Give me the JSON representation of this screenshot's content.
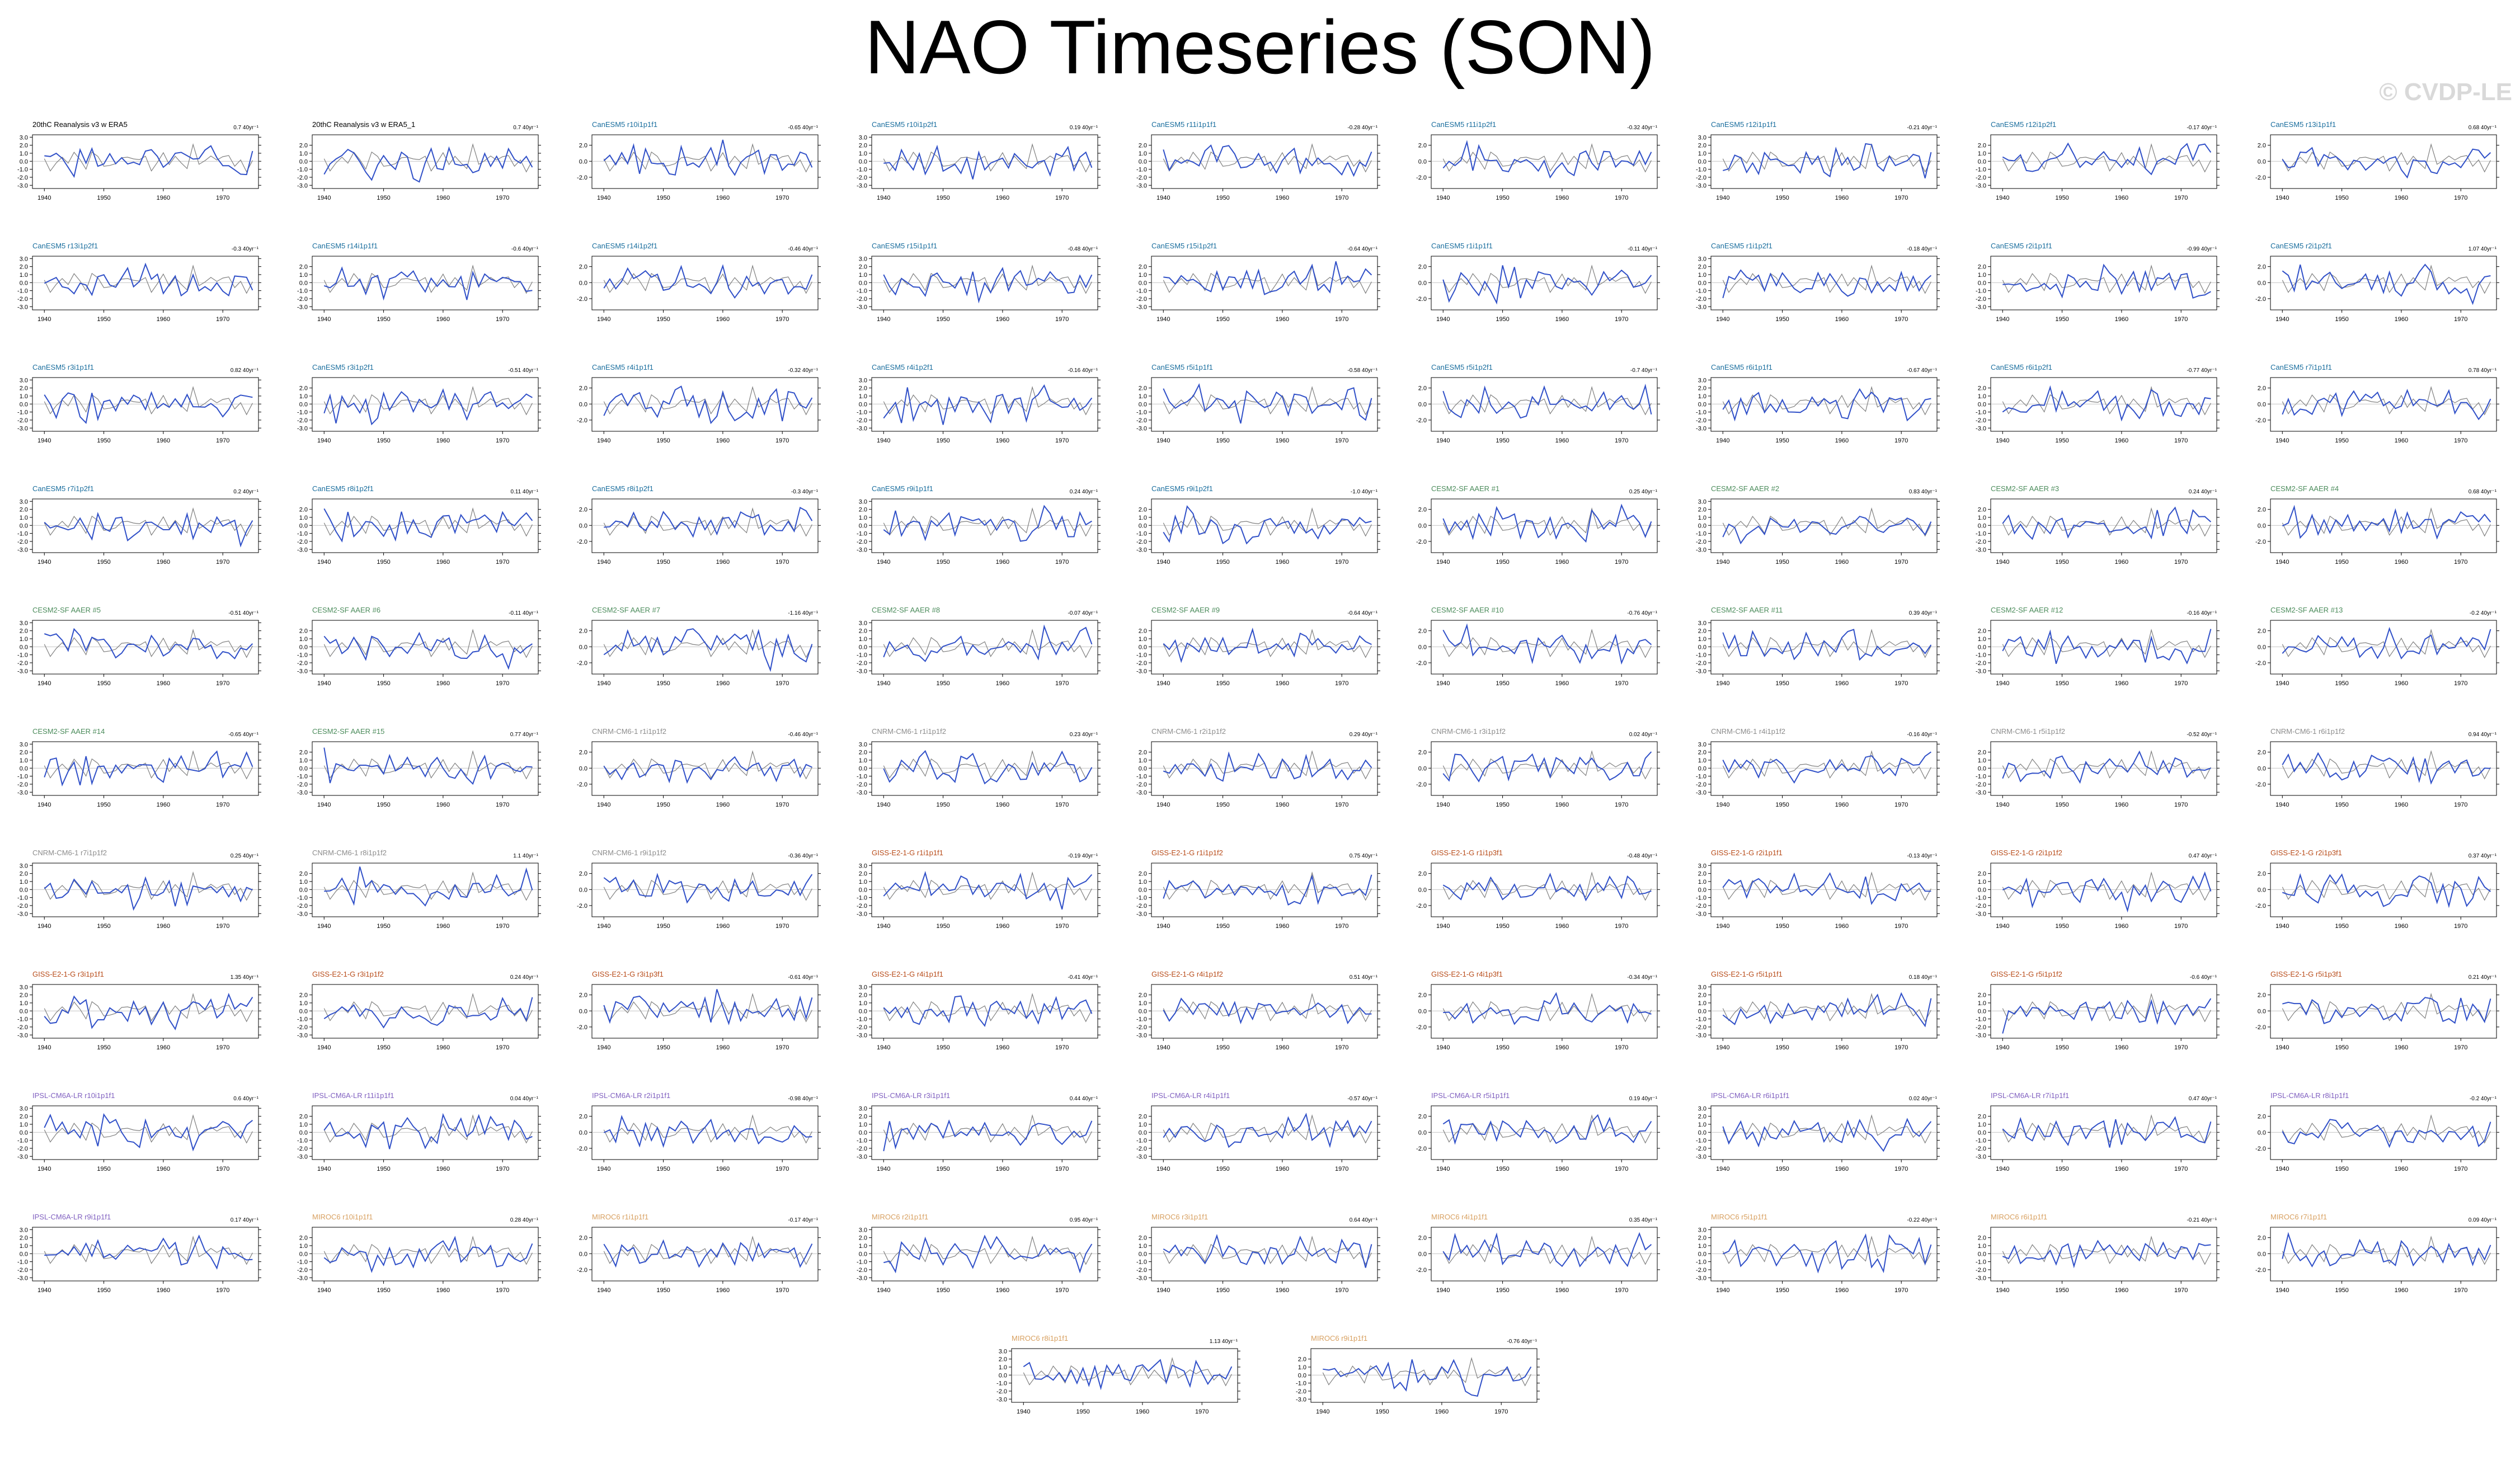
{
  "title": "NAO Timeseries (SON)",
  "watermark": "© CVDP-LE",
  "colors": {
    "model_line": "#3050c8",
    "obs_line": "#808080",
    "obs_title": "#000000",
    "canesm5_title": "#1a6e9e",
    "cesm2_title": "#4c8c5c",
    "cnrm_title": "#8c8c8c",
    "giss_title": "#b84c1a",
    "ipsl_title": "#8060c0",
    "miroc_title": "#d8a060"
  },
  "chart_data": {
    "type": "line",
    "x_range": [
      1938,
      1976
    ],
    "x_ticks": [
      "1940",
      "1950",
      "1960",
      "1970"
    ],
    "y_range": [
      -3.4,
      3.3
    ],
    "y_ticks_a": [
      "3.0",
      "2.0",
      "1.0",
      "0.0",
      "-1.0",
      "-2.0",
      "-3.0"
    ],
    "y_ticks_b": [
      "2.0",
      "1.0",
      "0.0",
      "-1.0",
      "-2.0",
      "-3.0"
    ],
    "y_ticks_c": [
      "2.0",
      "0.0",
      "-2.0"
    ],
    "trend_unit": "40yr⁻¹",
    "panels": [
      {
        "title": "20thC Reanalysis v3 w ERA5",
        "trend": "0.7",
        "group": "obs",
        "seed": 1
      },
      {
        "title": "20thC Reanalysis v3 w ERA5_1",
        "trend": "0.7",
        "group": "obs",
        "seed": 2
      },
      {
        "title": "CanESM5 r10i1p1f1",
        "trend": "-0.65",
        "group": "canesm5",
        "seed": 3
      },
      {
        "title": "CanESM5 r10i1p2f1",
        "trend": "0.19",
        "group": "canesm5",
        "seed": 4
      },
      {
        "title": "CanESM5 r11i1p1f1",
        "trend": "-0.28",
        "group": "canesm5",
        "seed": 5
      },
      {
        "title": "CanESM5 r11i1p2f1",
        "trend": "-0.32",
        "group": "canesm5",
        "seed": 6
      },
      {
        "title": "CanESM5 r12i1p1f1",
        "trend": "-0.21",
        "group": "canesm5",
        "seed": 7
      },
      {
        "title": "CanESM5 r12i1p2f1",
        "trend": "-0.17",
        "group": "canesm5",
        "seed": 8
      },
      {
        "title": "CanESM5 r13i1p1f1",
        "trend": "0.68",
        "group": "canesm5",
        "seed": 9
      },
      {
        "title": "CanESM5 r13i1p2f1",
        "trend": "-0.3",
        "group": "canesm5",
        "seed": 10
      },
      {
        "title": "CanESM5 r14i1p1f1",
        "trend": "-0.6",
        "group": "canesm5",
        "seed": 11
      },
      {
        "title": "CanESM5 r14i1p2f1",
        "trend": "-0.46",
        "group": "canesm5",
        "seed": 12
      },
      {
        "title": "CanESM5 r15i1p1f1",
        "trend": "-0.48",
        "group": "canesm5",
        "seed": 13
      },
      {
        "title": "CanESM5 r15i1p2f1",
        "trend": "-0.64",
        "group": "canesm5",
        "seed": 14
      },
      {
        "title": "CanESM5 r1i1p1f1",
        "trend": "-0.11",
        "group": "canesm5",
        "seed": 15
      },
      {
        "title": "CanESM5 r1i1p2f1",
        "trend": "-0.18",
        "group": "canesm5",
        "seed": 16
      },
      {
        "title": "CanESM5 r2i1p1f1",
        "trend": "-0.99",
        "group": "canesm5",
        "seed": 17
      },
      {
        "title": "CanESM5 r2i1p2f1",
        "trend": "1.07",
        "group": "canesm5",
        "seed": 18
      },
      {
        "title": "CanESM5 r3i1p1f1",
        "trend": "0.82",
        "group": "canesm5",
        "seed": 19
      },
      {
        "title": "CanESM5 r3i1p2f1",
        "trend": "-0.51",
        "group": "canesm5",
        "seed": 20
      },
      {
        "title": "CanESM5 r4i1p1f1",
        "trend": "-0.32",
        "group": "canesm5",
        "seed": 21
      },
      {
        "title": "CanESM5 r4i1p2f1",
        "trend": "-0.16",
        "group": "canesm5",
        "seed": 22
      },
      {
        "title": "CanESM5 r5i1p1f1",
        "trend": "-0.58",
        "group": "canesm5",
        "seed": 23
      },
      {
        "title": "CanESM5 r5i1p2f1",
        "trend": "-0.7",
        "group": "canesm5",
        "seed": 24
      },
      {
        "title": "CanESM5 r6i1p1f1",
        "trend": "-0.67",
        "group": "canesm5",
        "seed": 25
      },
      {
        "title": "CanESM5 r6i1p2f1",
        "trend": "-0.77",
        "group": "canesm5",
        "seed": 26
      },
      {
        "title": "CanESM5 r7i1p1f1",
        "trend": "0.78",
        "group": "canesm5",
        "seed": 27
      },
      {
        "title": "CanESM5 r7i1p2f1",
        "trend": "0.2",
        "group": "canesm5",
        "seed": 28
      },
      {
        "title": "CanESM5 r8i1p2f1",
        "trend": "0.11",
        "group": "canesm5",
        "seed": 29
      },
      {
        "title": "CanESM5 r8i1p2f1",
        "trend": "-0.3",
        "group": "canesm5",
        "seed": 30
      },
      {
        "title": "CanESM5 r9i1p1f1",
        "trend": "0.24",
        "group": "canesm5",
        "seed": 31
      },
      {
        "title": "CanESM5 r9i1p2f1",
        "trend": "-1.0",
        "group": "canesm5",
        "seed": 32
      },
      {
        "title": "CESM2-SF AAER #1",
        "trend": "0.25",
        "group": "cesm2",
        "seed": 33
      },
      {
        "title": "CESM2-SF AAER #2",
        "trend": "0.83",
        "group": "cesm2",
        "seed": 34
      },
      {
        "title": "CESM2-SF AAER #3",
        "trend": "0.24",
        "group": "cesm2",
        "seed": 35
      },
      {
        "title": "CESM2-SF AAER #4",
        "trend": "0.68",
        "group": "cesm2",
        "seed": 36
      },
      {
        "title": "CESM2-SF AAER #5",
        "trend": "-0.51",
        "group": "cesm2",
        "seed": 37
      },
      {
        "title": "CESM2-SF AAER #6",
        "trend": "-0.11",
        "group": "cesm2",
        "seed": 38
      },
      {
        "title": "CESM2-SF AAER #7",
        "trend": "-1.16",
        "group": "cesm2",
        "seed": 39
      },
      {
        "title": "CESM2-SF AAER #8",
        "trend": "-0.07",
        "group": "cesm2",
        "seed": 40
      },
      {
        "title": "CESM2-SF AAER #9",
        "trend": "-0.64",
        "group": "cesm2",
        "seed": 41
      },
      {
        "title": "CESM2-SF AAER #10",
        "trend": "-0.76",
        "group": "cesm2",
        "seed": 42
      },
      {
        "title": "CESM2-SF AAER #11",
        "trend": "0.39",
        "group": "cesm2",
        "seed": 43
      },
      {
        "title": "CESM2-SF AAER #12",
        "trend": "-0.16",
        "group": "cesm2",
        "seed": 44
      },
      {
        "title": "CESM2-SF AAER #13",
        "trend": "-0.2",
        "group": "cesm2",
        "seed": 45
      },
      {
        "title": "CESM2-SF AAER #14",
        "trend": "-0.65",
        "group": "cesm2",
        "seed": 46
      },
      {
        "title": "CESM2-SF AAER #15",
        "trend": "0.77",
        "group": "cesm2",
        "seed": 47
      },
      {
        "title": "CNRM-CM6-1 r1i1p1f2",
        "trend": "-0.46",
        "group": "cnrm",
        "seed": 48
      },
      {
        "title": "CNRM-CM6-1 r1i1p1f2",
        "trend": "0.23",
        "group": "cnrm",
        "seed": 49
      },
      {
        "title": "CNRM-CM6-1 r2i1p1f2",
        "trend": "0.29",
        "group": "cnrm",
        "seed": 50
      },
      {
        "title": "CNRM-CM6-1 r3i1p1f2",
        "trend": "0.02",
        "group": "cnrm",
        "seed": 51
      },
      {
        "title": "CNRM-CM6-1 r4i1p1f2",
        "trend": "-0.16",
        "group": "cnrm",
        "seed": 52
      },
      {
        "title": "CNRM-CM6-1 r5i1p1f2",
        "trend": "-0.52",
        "group": "cnrm",
        "seed": 53
      },
      {
        "title": "CNRM-CM6-1 r6i1p1f2",
        "trend": "0.94",
        "group": "cnrm",
        "seed": 54
      },
      {
        "title": "CNRM-CM6-1 r7i1p1f2",
        "trend": "0.25",
        "group": "cnrm",
        "seed": 55
      },
      {
        "title": "CNRM-CM6-1 r8i1p1f2",
        "trend": "1.1",
        "group": "cnrm",
        "seed": 56
      },
      {
        "title": "CNRM-CM6-1 r9i1p1f2",
        "trend": "-0.36",
        "group": "cnrm",
        "seed": 57
      },
      {
        "title": "GISS-E2-1-G r1i1p1f1",
        "trend": "-0.19",
        "group": "giss",
        "seed": 58
      },
      {
        "title": "GISS-E2-1-G r1i1p1f2",
        "trend": "0.75",
        "group": "giss",
        "seed": 59
      },
      {
        "title": "GISS-E2-1-G r1i1p3f1",
        "trend": "-0.48",
        "group": "giss",
        "seed": 60
      },
      {
        "title": "GISS-E2-1-G r2i1p1f1",
        "trend": "-0.13",
        "group": "giss",
        "seed": 61
      },
      {
        "title": "GISS-E2-1-G r2i1p1f2",
        "trend": "0.47",
        "group": "giss",
        "seed": 62
      },
      {
        "title": "GISS-E2-1-G r2i1p3f1",
        "trend": "0.37",
        "group": "giss",
        "seed": 63
      },
      {
        "title": "GISS-E2-1-G r3i1p1f1",
        "trend": "1.35",
        "group": "giss",
        "seed": 64
      },
      {
        "title": "GISS-E2-1-G r3i1p1f2",
        "trend": "0.24",
        "group": "giss",
        "seed": 65
      },
      {
        "title": "GISS-E2-1-G r3i1p3f1",
        "trend": "-0.61",
        "group": "giss",
        "seed": 66
      },
      {
        "title": "GISS-E2-1-G r4i1p1f1",
        "trend": "-0.41",
        "group": "giss",
        "seed": 67
      },
      {
        "title": "GISS-E2-1-G r4i1p1f2",
        "trend": "0.51",
        "group": "giss",
        "seed": 68
      },
      {
        "title": "GISS-E2-1-G r4i1p3f1",
        "trend": "-0.34",
        "group": "giss",
        "seed": 69
      },
      {
        "title": "GISS-E2-1-G r5i1p1f1",
        "trend": "0.18",
        "group": "giss",
        "seed": 70
      },
      {
        "title": "GISS-E2-1-G r5i1p1f2",
        "trend": "-0.6",
        "group": "giss",
        "seed": 71
      },
      {
        "title": "GISS-E2-1-G r5i1p3f1",
        "trend": "0.21",
        "group": "giss",
        "seed": 72
      },
      {
        "title": "IPSL-CM6A-LR r10i1p1f1",
        "trend": "0.6",
        "group": "ipsl",
        "seed": 73
      },
      {
        "title": "IPSL-CM6A-LR r11i1p1f1",
        "trend": "0.04",
        "group": "ipsl",
        "seed": 74
      },
      {
        "title": "IPSL-CM6A-LR r2i1p1f1",
        "trend": "-0.98",
        "group": "ipsl",
        "seed": 75
      },
      {
        "title": "IPSL-CM6A-LR r3i1p1f1",
        "trend": "0.44",
        "group": "ipsl",
        "seed": 76
      },
      {
        "title": "IPSL-CM6A-LR r4i1p1f1",
        "trend": "-0.57",
        "group": "ipsl",
        "seed": 77
      },
      {
        "title": "IPSL-CM6A-LR r5i1p1f1",
        "trend": "0.19",
        "group": "ipsl",
        "seed": 78
      },
      {
        "title": "IPSL-CM6A-LR r6i1p1f1",
        "trend": "0.02",
        "group": "ipsl",
        "seed": 79
      },
      {
        "title": "IPSL-CM6A-LR r7i1p1f1",
        "trend": "0.47",
        "group": "ipsl",
        "seed": 80
      },
      {
        "title": "IPSL-CM6A-LR r8i1p1f1",
        "trend": "-0.2",
        "group": "ipsl",
        "seed": 81
      },
      {
        "title": "IPSL-CM6A-LR r9i1p1f1",
        "trend": "0.17",
        "group": "ipsl",
        "seed": 82
      },
      {
        "title": "MIROC6 r10i1p1f1",
        "trend": "0.28",
        "group": "miroc",
        "seed": 83
      },
      {
        "title": "MIROC6 r1i1p1f1",
        "trend": "-0.17",
        "group": "miroc",
        "seed": 84
      },
      {
        "title": "MIROC6 r2i1p1f1",
        "trend": "0.95",
        "group": "miroc",
        "seed": 85
      },
      {
        "title": "MIROC6 r3i1p1f1",
        "trend": "0.64",
        "group": "miroc",
        "seed": 86
      },
      {
        "title": "MIROC6 r4i1p1f1",
        "trend": "0.35",
        "group": "miroc",
        "seed": 87
      },
      {
        "title": "MIROC6 r5i1p1f1",
        "trend": "-0.22",
        "group": "miroc",
        "seed": 88
      },
      {
        "title": "MIROC6 r6i1p1f1",
        "trend": "-0.21",
        "group": "miroc",
        "seed": 89
      },
      {
        "title": "MIROC6 r7i1p1f1",
        "trend": "0.09",
        "group": "miroc",
        "seed": 90
      },
      {
        "title": "MIROC6 r8i1p1f1",
        "trend": "1.13",
        "group": "miroc",
        "seed": 91
      },
      {
        "title": "MIROC6 r9i1p1f1",
        "trend": "-0.76",
        "group": "miroc",
        "seed": 92
      }
    ]
  }
}
